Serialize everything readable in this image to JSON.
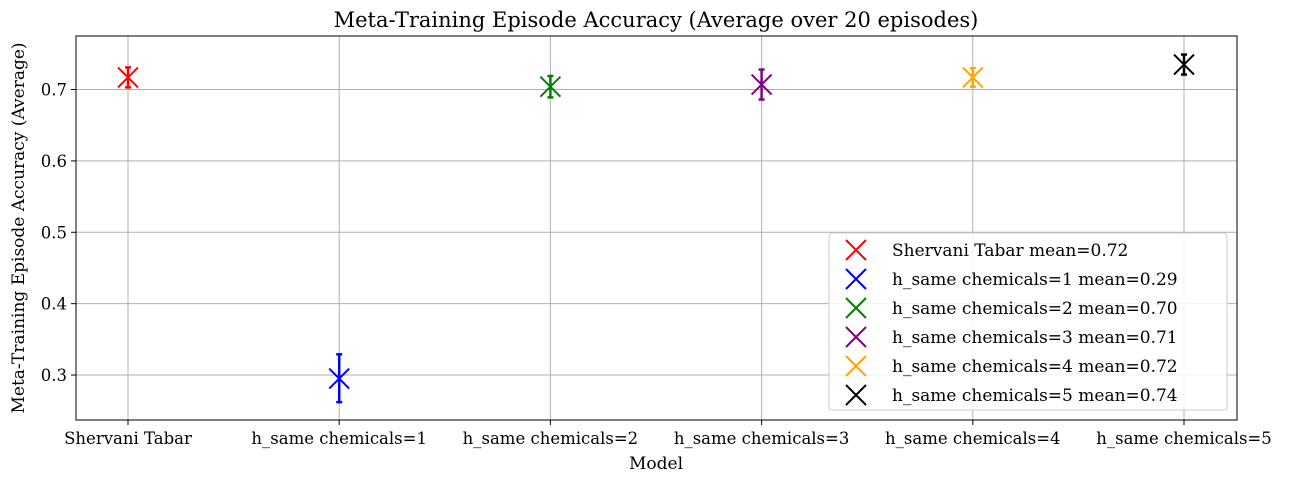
{
  "chart_data": {
    "type": "scatter",
    "title": "Meta-Training Episode Accuracy (Average over 20 episodes)",
    "xlabel": "Model",
    "ylabel": "Meta-Training Episode Accuracy (Average)",
    "categories": [
      "Shervani Tabar",
      "h_same chemicals=1",
      "h_same chemicals=2",
      "h_same chemicals=3",
      "h_same chemicals=4",
      "h_same chemicals=5"
    ],
    "ylim": [
      0.237,
      0.775
    ],
    "yticks": [
      0.3,
      0.4,
      0.5,
      0.6,
      0.7
    ],
    "ytick_labels": [
      "0.3",
      "0.4",
      "0.5",
      "0.6",
      "0.7"
    ],
    "grid": true,
    "legend_position": "lower-right",
    "series": [
      {
        "name": "Shervani Tabar mean=0.72",
        "category": "Shervani Tabar",
        "mean": 0.717,
        "err_low": 0.703,
        "err_high": 0.731,
        "color": "#ff0000"
      },
      {
        "name": "h_same chemicals=1 mean=0.29",
        "category": "h_same chemicals=1",
        "mean": 0.295,
        "err_low": 0.262,
        "err_high": 0.329,
        "color": "#0000ff"
      },
      {
        "name": "h_same chemicals=2 mean=0.70",
        "category": "h_same chemicals=2",
        "mean": 0.704,
        "err_low": 0.689,
        "err_high": 0.719,
        "color": "#008000"
      },
      {
        "name": "h_same chemicals=3 mean=0.71",
        "category": "h_same chemicals=3",
        "mean": 0.707,
        "err_low": 0.686,
        "err_high": 0.728,
        "color": "#800080"
      },
      {
        "name": "h_same chemicals=4 mean=0.72",
        "category": "h_same chemicals=4",
        "mean": 0.717,
        "err_low": 0.704,
        "err_high": 0.73,
        "color": "#ffa500"
      },
      {
        "name": "h_same chemicals=5 mean=0.74",
        "category": "h_same chemicals=5",
        "mean": 0.735,
        "err_low": 0.721,
        "err_high": 0.749,
        "color": "#000000"
      }
    ]
  }
}
